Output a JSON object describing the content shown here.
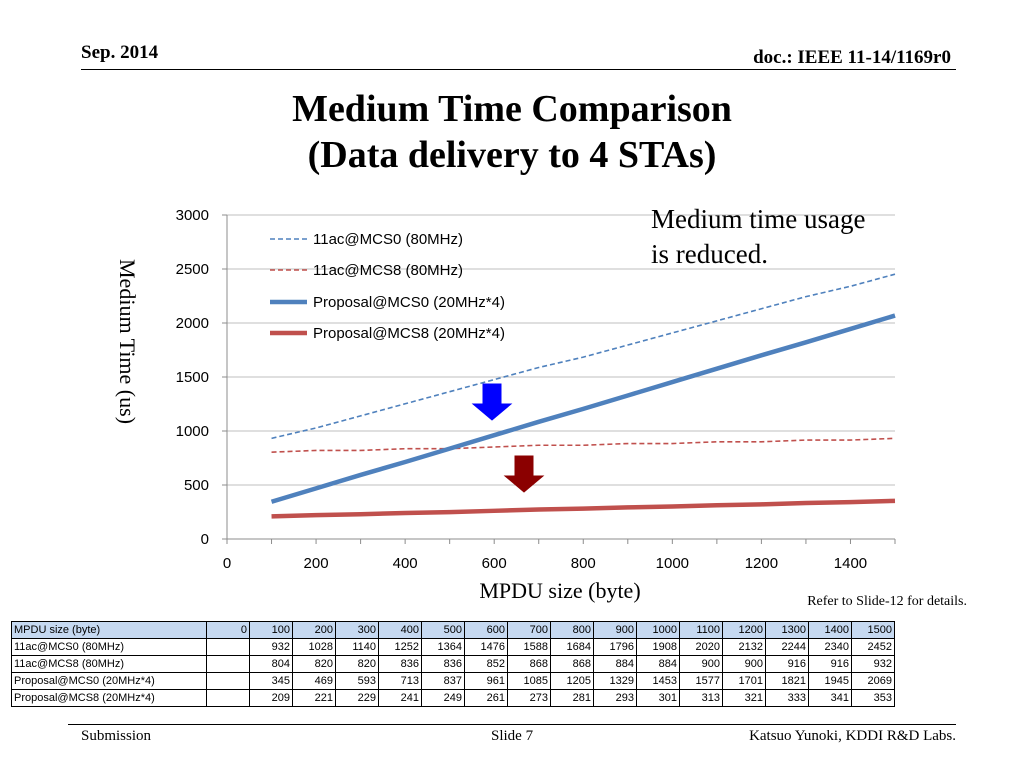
{
  "header": {
    "date": "Sep. 2014",
    "doc": "doc.: IEEE 11-14/1169r0"
  },
  "title": {
    "line1": "Medium Time Comparison",
    "line2": "(Data delivery to 4 STAs)"
  },
  "annotation": {
    "line1": "Medium time usage",
    "line2": "is reduced."
  },
  "note": "Refer to Slide-12 for details.",
  "footer": {
    "left": "Submission",
    "center": "Slide 7",
    "right": "Katsuo Yunoki, KDDI R&D Labs."
  },
  "colors": {
    "blue": "#4f81bd",
    "red": "#c0504d",
    "arrow_blue": "#0000ff",
    "arrow_red": "#8b0000",
    "table_header": "#c6d9f1"
  },
  "chart_data": {
    "type": "line",
    "xlabel": "MPDU size (byte)",
    "ylabel": "Medium Time (us)",
    "xlim": [
      0,
      1500
    ],
    "ylim": [
      0,
      3000
    ],
    "xticks": [
      0,
      200,
      400,
      600,
      800,
      1000,
      1200,
      1400
    ],
    "yticks": [
      0,
      500,
      1000,
      1500,
      2000,
      2500,
      3000
    ],
    "grid": "horizontal",
    "legend_position": "top-left",
    "x": [
      100,
      200,
      300,
      400,
      500,
      600,
      700,
      800,
      900,
      1000,
      1100,
      1200,
      1300,
      1400,
      1500
    ],
    "series": [
      {
        "name": "11ac@MCS0 (80MHz)",
        "color": "#4f81bd",
        "style": "dashed",
        "values": [
          932,
          1028,
          1140,
          1252,
          1364,
          1476,
          1588,
          1684,
          1796,
          1908,
          2020,
          2132,
          2244,
          2340,
          2452
        ]
      },
      {
        "name": "11ac@MCS8 (80MHz)",
        "color": "#c0504d",
        "style": "dashed",
        "values": [
          804,
          820,
          820,
          836,
          836,
          852,
          868,
          868,
          884,
          884,
          900,
          900,
          916,
          916,
          932
        ]
      },
      {
        "name": "Proposal@MCS0 (20MHz*4)",
        "color": "#4f81bd",
        "style": "solid-thick",
        "values": [
          345,
          469,
          593,
          713,
          837,
          961,
          1085,
          1205,
          1329,
          1453,
          1577,
          1701,
          1821,
          1945,
          2069
        ]
      },
      {
        "name": "Proposal@MCS8 (20MHz*4)",
        "color": "#c0504d",
        "style": "solid-thick",
        "values": [
          209,
          221,
          229,
          241,
          249,
          261,
          273,
          281,
          293,
          301,
          313,
          321,
          333,
          341,
          353
        ]
      }
    ]
  },
  "table": {
    "header_label": "MPDU size (byte)",
    "header_values": [
      "0",
      "100",
      "200",
      "300",
      "400",
      "500",
      "600",
      "700",
      "800",
      "900",
      "1000",
      "1100",
      "1200",
      "1300",
      "1400",
      "1500"
    ],
    "rows": [
      {
        "label": "11ac@MCS0 (80MHz)",
        "values": [
          "",
          "932",
          "1028",
          "1140",
          "1252",
          "1364",
          "1476",
          "1588",
          "1684",
          "1796",
          "1908",
          "2020",
          "2132",
          "2244",
          "2340",
          "2452"
        ]
      },
      {
        "label": "11ac@MCS8 (80MHz)",
        "values": [
          "",
          "804",
          "820",
          "820",
          "836",
          "836",
          "852",
          "868",
          "868",
          "884",
          "884",
          "900",
          "900",
          "916",
          "916",
          "932"
        ]
      },
      {
        "label": "Proposal@MCS0 (20MHz*4)",
        "values": [
          "",
          "345",
          "469",
          "593",
          "713",
          "837",
          "961",
          "1085",
          "1205",
          "1329",
          "1453",
          "1577",
          "1701",
          "1821",
          "1945",
          "2069"
        ]
      },
      {
        "label": "Proposal@MCS8 (20MHz*4)",
        "values": [
          "",
          "209",
          "221",
          "229",
          "241",
          "249",
          "261",
          "273",
          "281",
          "293",
          "301",
          "313",
          "321",
          "333",
          "341",
          "353"
        ]
      }
    ]
  }
}
